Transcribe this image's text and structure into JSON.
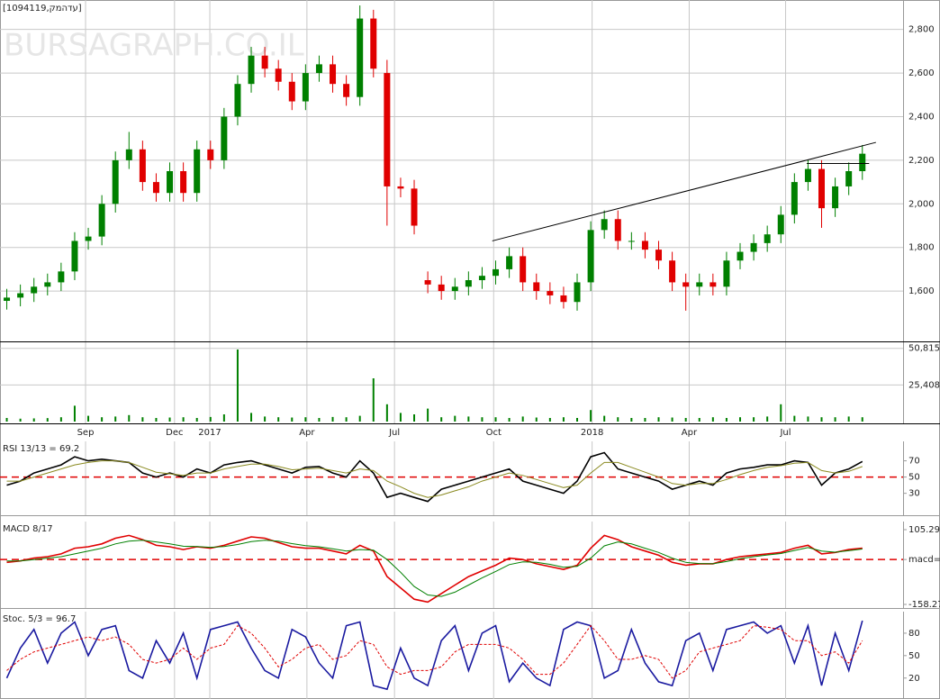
{
  "chart_data": [
    {
      "type": "candlestick",
      "title": "[1094119,קמהדע]",
      "watermark": "BURSAGRAPH.CO.IL",
      "x": [
        1,
        3,
        5,
        7,
        9,
        11,
        13,
        15,
        17,
        19,
        21,
        23,
        25,
        27,
        29,
        31,
        33,
        35,
        37,
        39,
        41,
        43,
        45,
        47,
        49,
        51,
        53,
        55,
        57,
        59,
        61,
        63,
        65,
        67,
        69,
        71,
        73,
        75,
        77,
        79,
        81,
        83,
        85,
        87,
        89,
        91,
        93,
        95,
        97,
        99,
        101,
        103,
        105,
        107,
        109,
        111,
        113,
        115,
        117,
        119,
        121,
        123,
        125,
        127
      ],
      "open": [
        1555,
        1570,
        1590,
        1620,
        1640,
        1690,
        1830,
        1850,
        2000,
        2200,
        2250,
        2100,
        2050,
        2150,
        2050,
        2250,
        2200,
        2400,
        2550,
        2680,
        2620,
        2560,
        2470,
        2600,
        2640,
        2550,
        2490,
        2850,
        2600,
        2080,
        2070,
        1650,
        1630,
        1600,
        1620,
        1650,
        1670,
        1700,
        1760,
        1640,
        1600,
        1580,
        1550,
        1640,
        1880,
        1930,
        1830,
        1830,
        1790,
        1740,
        1640,
        1620,
        1640,
        1620,
        1740,
        1780,
        1820,
        1860,
        1950,
        2100,
        2160,
        1980,
        2080,
        2150
      ],
      "high": [
        1610,
        1630,
        1660,
        1680,
        1730,
        1870,
        1890,
        2040,
        2240,
        2330,
        2290,
        2140,
        2190,
        2190,
        2290,
        2290,
        2440,
        2590,
        2720,
        2720,
        2660,
        2600,
        2640,
        2680,
        2680,
        2590,
        2910,
        2890,
        2660,
        2120,
        2110,
        1690,
        1670,
        1660,
        1690,
        1710,
        1740,
        1800,
        1800,
        1680,
        1640,
        1620,
        1680,
        1920,
        1970,
        1970,
        1870,
        1870,
        1830,
        1780,
        1680,
        1680,
        1680,
        1780,
        1820,
        1860,
        1900,
        1990,
        2140,
        2200,
        2200,
        2120,
        2190,
        2270
      ],
      "low": [
        1515,
        1530,
        1550,
        1580,
        1600,
        1650,
        1790,
        1810,
        1960,
        2160,
        2060,
        2010,
        2010,
        2010,
        2010,
        2160,
        2160,
        2360,
        2510,
        2580,
        2520,
        2430,
        2430,
        2560,
        2510,
        2450,
        2450,
        2580,
        1900,
        2030,
        1860,
        1590,
        1560,
        1560,
        1580,
        1610,
        1630,
        1660,
        1600,
        1560,
        1540,
        1520,
        1510,
        1600,
        1840,
        1790,
        1790,
        1750,
        1700,
        1600,
        1510,
        1580,
        1580,
        1580,
        1700,
        1740,
        1780,
        1820,
        1910,
        2060,
        1890,
        1940,
        2040,
        2110
      ],
      "close": [
        1570,
        1590,
        1620,
        1640,
        1690,
        1830,
        1850,
        2000,
        2200,
        2250,
        2100,
        2050,
        2150,
        2050,
        2250,
        2200,
        2400,
        2550,
        2680,
        2620,
        2560,
        2470,
        2600,
        2640,
        2550,
        2490,
        2850,
        2620,
        2080,
        2070,
        1900,
        1630,
        1600,
        1620,
        1650,
        1670,
        1700,
        1760,
        1640,
        1600,
        1580,
        1550,
        1640,
        1880,
        1930,
        1830,
        1830,
        1790,
        1740,
        1640,
        1620,
        1640,
        1620,
        1740,
        1780,
        1820,
        1860,
        1950,
        2100,
        2160,
        1980,
        2080,
        2150,
        2230
      ],
      "up_color": "#008000",
      "down_color": "#e00000",
      "lines": [
        {
          "x": [
            72.5,
            129
          ],
          "y": [
            1830,
            2282
          ]
        },
        {
          "x": [
            118.8,
            128
          ],
          "y": [
            2185,
            2185
          ]
        }
      ],
      "xlim": [
        0,
        133
      ],
      "ylim": [
        1365,
        2935
      ],
      "yticks": [
        {
          "value": 1600,
          "label": "1,600"
        },
        {
          "value": 1800,
          "label": "1,800"
        },
        {
          "value": 2000,
          "label": "2,000"
        },
        {
          "value": 2200,
          "label": "2,200"
        },
        {
          "value": 2400,
          "label": "2,400"
        },
        {
          "value": 2600,
          "label": "2,600"
        },
        {
          "value": 2800,
          "label": "2,800"
        }
      ],
      "grid": true
    },
    {
      "type": "bar",
      "color": "#008000",
      "values": [
        2500,
        2000,
        2200,
        2400,
        3000,
        11000,
        4000,
        3000,
        3500,
        4500,
        3000,
        2500,
        2800,
        3000,
        2500,
        3200,
        5000,
        50000,
        6000,
        3500,
        3000,
        2800,
        3000,
        2500,
        3200,
        3000,
        4000,
        30000,
        12000,
        6000,
        5000,
        9000,
        3000,
        4000,
        3500,
        3000,
        3000,
        2500,
        3500,
        2800,
        2500,
        3000,
        2500,
        8000,
        4000,
        3000,
        2500,
        2500,
        3000,
        2800,
        2500,
        2500,
        3000,
        2500,
        3000,
        3000,
        3500,
        12000,
        4000,
        3500,
        3000,
        3000,
        3500,
        3000
      ],
      "ylim": [
        0,
        55000
      ],
      "yticks": [
        {
          "value": 50815,
          "label": "50,815"
        },
        {
          "value": 25408,
          "label": "25,408"
        }
      ],
      "grid": true,
      "xticks": [
        {
          "value": 12.6,
          "label": "Sep"
        },
        {
          "value": 25.7,
          "label": "Dec"
        },
        {
          "value": 30.9,
          "label": "2017"
        },
        {
          "value": 45.2,
          "label": "Apr"
        },
        {
          "value": 58.1,
          "label": "Jul"
        },
        {
          "value": 72.7,
          "label": "Oct"
        },
        {
          "value": 87.2,
          "label": "2018"
        },
        {
          "value": 101.5,
          "label": "Apr"
        },
        {
          "value": 115.7,
          "label": "Jul"
        }
      ]
    },
    {
      "type": "line",
      "title": "RSI 13/13 = 69.2",
      "ylim": [
        3,
        105
      ],
      "yticks": [
        70,
        50,
        30
      ],
      "ref_line": 50,
      "ref_color": "#e00000",
      "series": [
        {
          "color": "#000000",
          "values": [
            40,
            45,
            55,
            60,
            65,
            75,
            70,
            72,
            70,
            68,
            55,
            50,
            55,
            50,
            60,
            55,
            65,
            68,
            70,
            65,
            60,
            55,
            62,
            63,
            55,
            50,
            70,
            55,
            25,
            30,
            25,
            20,
            35,
            40,
            45,
            50,
            55,
            60,
            45,
            40,
            35,
            30,
            45,
            75,
            80,
            60,
            55,
            50,
            45,
            35,
            40,
            45,
            40,
            55,
            60,
            62,
            65,
            65,
            70,
            68,
            40,
            55,
            60,
            69.2
          ]
        },
        {
          "color": "#8a8a20",
          "values": [
            45,
            45,
            50,
            55,
            60,
            65,
            68,
            70,
            70,
            68,
            62,
            56,
            54,
            52,
            55,
            55,
            60,
            63,
            66,
            66,
            63,
            59,
            60,
            61,
            58,
            55,
            60,
            58,
            45,
            38,
            30,
            25,
            28,
            33,
            38,
            45,
            50,
            55,
            52,
            47,
            42,
            37,
            40,
            55,
            68,
            68,
            62,
            56,
            50,
            42,
            40,
            42,
            42,
            47,
            53,
            58,
            62,
            64,
            67,
            68,
            58,
            55,
            57,
            63
          ]
        }
      ]
    },
    {
      "type": "line",
      "title": "MACD 8/17",
      "ylim": [
        -158.27,
        105.29
      ],
      "yticks": [
        105.29,
        {
          "value": 0,
          "label": "macd=0"
        },
        -158.27
      ],
      "ref_line": 0,
      "ref_color": "#e00000",
      "series": [
        {
          "color": "#e00000",
          "values": [
            -10,
            -5,
            5,
            10,
            20,
            40,
            45,
            55,
            75,
            85,
            70,
            50,
            45,
            35,
            45,
            40,
            50,
            65,
            80,
            75,
            60,
            45,
            40,
            40,
            30,
            20,
            50,
            30,
            -60,
            -100,
            -140,
            -150,
            -120,
            -90,
            -60,
            -40,
            -20,
            5,
            0,
            -15,
            -25,
            -35,
            -20,
            40,
            85,
            70,
            45,
            30,
            15,
            -10,
            -20,
            -15,
            -15,
            0,
            10,
            15,
            20,
            25,
            40,
            50,
            20,
            25,
            35,
            40
          ]
        },
        {
          "color": "#008000",
          "values": [
            -5,
            -5,
            0,
            5,
            10,
            20,
            30,
            40,
            55,
            65,
            68,
            62,
            55,
            47,
            46,
            43,
            46,
            53,
            63,
            68,
            65,
            56,
            49,
            45,
            38,
            30,
            35,
            33,
            0,
            -45,
            -95,
            -125,
            -130,
            -115,
            -90,
            -65,
            -42,
            -18,
            -8,
            -10,
            -17,
            -27,
            -24,
            5,
            48,
            62,
            55,
            40,
            25,
            5,
            -10,
            -14,
            -15,
            -7,
            3,
            10,
            16,
            21,
            32,
            42,
            30,
            26,
            31,
            37
          ]
        }
      ]
    },
    {
      "type": "line",
      "title": "Stoc. 5/3 = 96.7",
      "ylim": [
        -8,
        104
      ],
      "yticks": [
        80,
        50,
        20
      ],
      "series": [
        {
          "color": "#1a1aa0",
          "values": [
            20,
            60,
            85,
            40,
            80,
            95,
            50,
            85,
            90,
            30,
            20,
            70,
            40,
            80,
            20,
            85,
            90,
            95,
            60,
            30,
            20,
            85,
            75,
            40,
            20,
            90,
            95,
            10,
            5,
            60,
            20,
            10,
            70,
            90,
            30,
            80,
            90,
            15,
            40,
            20,
            10,
            85,
            95,
            90,
            20,
            30,
            85,
            40,
            15,
            10,
            70,
            80,
            30,
            85,
            90,
            95,
            80,
            90,
            40,
            90,
            10,
            80,
            30,
            96.7
          ]
        },
        {
          "color": "#e00000",
          "dashed": true,
          "values": [
            30,
            45,
            55,
            60,
            65,
            70,
            75,
            70,
            75,
            65,
            45,
            40,
            45,
            60,
            45,
            60,
            65,
            90,
            80,
            60,
            35,
            45,
            60,
            65,
            45,
            50,
            70,
            65,
            35,
            25,
            30,
            30,
            35,
            55,
            65,
            65,
            65,
            60,
            45,
            25,
            25,
            40,
            65,
            90,
            70,
            45,
            45,
            50,
            45,
            20,
            30,
            55,
            60,
            65,
            70,
            90,
            88,
            85,
            70,
            70,
            50,
            55,
            40,
            70
          ]
        }
      ]
    }
  ]
}
